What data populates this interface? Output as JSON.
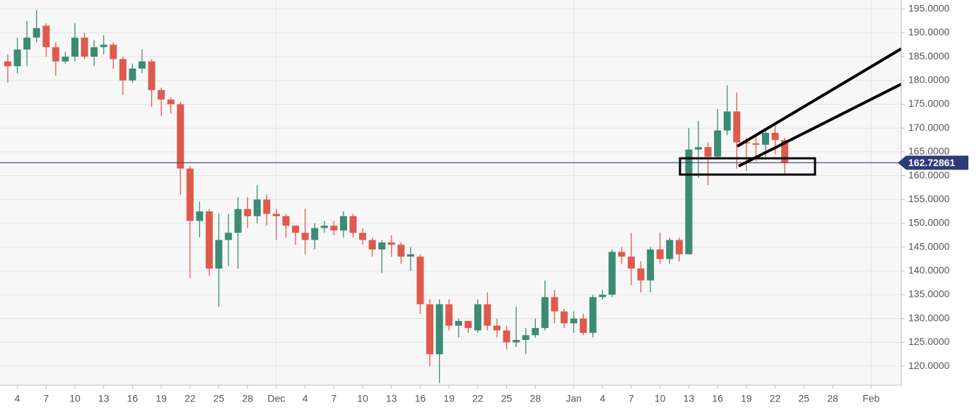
{
  "chart_data": {
    "type": "candlestick",
    "categories": [
      null,
      "4",
      null,
      null,
      "7",
      null,
      null,
      "10",
      null,
      null,
      "13",
      null,
      null,
      "16",
      null,
      null,
      "19",
      null,
      null,
      "22",
      null,
      null,
      "25",
      null,
      null,
      "28",
      null,
      null,
      "Dec",
      null,
      null,
      "4",
      null,
      null,
      "7",
      null,
      null,
      "10",
      null,
      null,
      "13",
      null,
      null,
      "16",
      null,
      null,
      "19",
      null,
      null,
      "22",
      null,
      null,
      "25",
      null,
      null,
      "28",
      null,
      null,
      null,
      "Jan",
      null,
      null,
      "4",
      null,
      null,
      "7",
      null,
      null,
      "10",
      null,
      null,
      "13",
      null,
      null,
      "16",
      null,
      null,
      "19",
      null,
      null,
      "22",
      null,
      null,
      "25",
      null,
      null,
      "28",
      null,
      null,
      null,
      "Feb",
      null,
      null
    ],
    "open": [
      184,
      183,
      186.5,
      189,
      191.5,
      187,
      184,
      185,
      189,
      185,
      187,
      187.5,
      184.5,
      180,
      182.5,
      184,
      178,
      176,
      175,
      161.5,
      150.5,
      152.5,
      140.5,
      146.5,
      148,
      153,
      151.5,
      155,
      152,
      151.5,
      149.5,
      148,
      146.5,
      149,
      149.5,
      148.5,
      151.5,
      148,
      146.5,
      144.5,
      146,
      145.5,
      143,
      143,
      133,
      122.5,
      133,
      128.5,
      129.5,
      127.5,
      133,
      128.5,
      127.5,
      125,
      125.5,
      126.5,
      128,
      134.5,
      131.5,
      129,
      130,
      127,
      134.5,
      135,
      144,
      143,
      140.5,
      138,
      144.5,
      142.5,
      146.5,
      143.5,
      165.5,
      166,
      164,
      169.5,
      173.5,
      167,
      166.8,
      166.5,
      169,
      167.5,
      null,
      null,
      null,
      null,
      null,
      null,
      null,
      null,
      null,
      null,
      null
    ],
    "high": [
      185.5,
      189,
      192.5,
      194.8,
      192,
      188,
      186,
      192,
      190,
      188.5,
      189.5,
      188,
      185,
      183.5,
      186.5,
      184.5,
      178.5,
      176.5,
      175.5,
      162,
      154.5,
      153,
      152,
      152,
      155.5,
      155.5,
      158,
      156,
      153,
      152,
      149.5,
      153,
      150,
      150.5,
      150.5,
      152.5,
      152,
      149,
      147,
      146.5,
      147.5,
      146,
      145,
      143.5,
      134,
      134,
      134,
      130,
      129.5,
      134,
      135.5,
      130,
      128.5,
      132.5,
      128,
      130,
      138,
      136,
      132,
      131.5,
      131,
      135,
      136,
      144.5,
      145,
      148,
      142,
      145,
      148,
      147,
      147,
      170,
      171.5,
      167,
      174,
      179,
      177.5,
      168,
      168.5,
      169.5,
      170.5,
      168,
      null,
      null,
      null,
      null,
      null,
      null,
      null,
      null,
      null,
      null,
      null
    ],
    "low": [
      179.5,
      181.5,
      183,
      188,
      185,
      181,
      183.5,
      184,
      184.5,
      183,
      185.5,
      182.5,
      177,
      179.5,
      181.5,
      174.5,
      172.5,
      173,
      156,
      138.5,
      147,
      139,
      132.5,
      141,
      140.5,
      149,
      150,
      149.5,
      146.5,
      147,
      145.5,
      143.5,
      144.5,
      148,
      147.5,
      147,
      147,
      145.5,
      143,
      139.5,
      143,
      141.5,
      140,
      131,
      120,
      116.5,
      127.5,
      126,
      127,
      127,
      127.5,
      126,
      123.5,
      124,
      122.5,
      126,
      127.5,
      129,
      128,
      127,
      126.5,
      126,
      134,
      134.5,
      141.5,
      137,
      135.5,
      135.5,
      141.5,
      141.5,
      142,
      143.5,
      159.5,
      158,
      163.5,
      168.5,
      161.5,
      161,
      163,
      164,
      164.5,
      160.5,
      null,
      null,
      null,
      null,
      null,
      null,
      null,
      null,
      null,
      null,
      null
    ],
    "close": [
      183,
      186.5,
      189,
      191,
      187,
      184,
      185,
      189,
      185,
      187,
      187.5,
      184.5,
      180,
      182.5,
      184,
      178,
      176,
      175,
      161.5,
      150.5,
      152.5,
      140.5,
      146.5,
      148,
      153,
      151.5,
      155,
      152,
      151.5,
      149.5,
      148,
      146.5,
      149,
      149.5,
      148.5,
      151.5,
      148,
      146.5,
      144.5,
      146,
      145.5,
      143,
      143.5,
      133,
      122.5,
      133,
      128.5,
      129.5,
      128,
      133,
      128.5,
      127.5,
      125,
      125.5,
      126.5,
      128,
      134.5,
      131.5,
      129,
      130,
      127,
      134.5,
      135,
      144,
      143,
      140.5,
      138,
      144.5,
      142.5,
      146.5,
      143.5,
      165.5,
      166,
      164,
      169.5,
      173.5,
      167,
      166.8,
      166.5,
      169,
      167.5,
      162.7,
      null,
      null,
      null,
      null,
      null,
      null,
      null,
      null,
      null,
      null,
      null
    ],
    "up_color": "#3b8c74",
    "down_color": "#de5a4c",
    "price_line": 162.72861,
    "price_line_color": "#2d3c78",
    "ylim": [
      116,
      196.9
    ],
    "yticks": [
      {
        "value": 120,
        "label": "120.0000"
      },
      {
        "value": 125,
        "label": "125.0000"
      },
      {
        "value": 130,
        "label": "130.0000"
      },
      {
        "value": 135,
        "label": "135.0000"
      },
      {
        "value": 140,
        "label": "140.0000"
      },
      {
        "value": 145,
        "label": "145.0000"
      },
      {
        "value": 150,
        "label": "150.0000"
      },
      {
        "value": 155,
        "label": "155.0000"
      },
      {
        "value": 160,
        "label": "160.0000"
      },
      {
        "value": 165,
        "label": "165.0000"
      },
      {
        "value": 170,
        "label": "170.0000"
      },
      {
        "value": 175,
        "label": "175.0000"
      },
      {
        "value": 180,
        "label": "180.0000"
      },
      {
        "value": 185,
        "label": "185.0000"
      },
      {
        "value": 190,
        "label": "190.0000"
      },
      {
        "value": 195,
        "label": "195.0000"
      }
    ],
    "grid": true
  }
}
